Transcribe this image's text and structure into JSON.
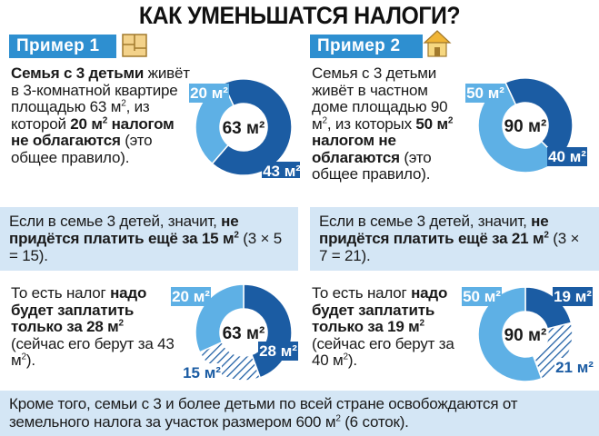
{
  "title": "КАК УМЕНЬШАТСЯ НАЛОГИ?",
  "colors": {
    "dark_blue": "#1b5ca3",
    "light_blue": "#5eb0e5",
    "panel_bg": "#d4e6f5",
    "tag_blue": "#2e8fd0"
  },
  "example1": {
    "label": "Пример 1",
    "icon": "floor-plan-icon",
    "text": [
      {
        "t": "Семья с 3 детьми",
        "b": true
      },
      {
        "t": " живёт в 3-комнатной квартире площадью 63 м"
      },
      {
        "t": "2",
        "sup": true
      },
      {
        "t": ", из которой "
      },
      {
        "t": "20 м",
        "b": true
      },
      {
        "t": "2",
        "sup": true,
        "b": true
      },
      {
        "t": " налогом не облагаются",
        "b": true
      },
      {
        "t": " (это общее правило)."
      }
    ],
    "panel": [
      {
        "t": "Если в семье 3 детей, значит, "
      },
      {
        "t": "не придётся платить ещё за 15 м",
        "b": true
      },
      {
        "t": "2",
        "sup": true,
        "b": true
      },
      {
        "t": " (3 × 5 = 15)."
      }
    ],
    "result": [
      {
        "t": "То есть налог "
      },
      {
        "t": "надо будет заплатить только за 28 м",
        "b": true
      },
      {
        "t": "2",
        "sup": true,
        "b": true
      },
      {
        "t": " (сейчас его берут за 43 м"
      },
      {
        "t": "2",
        "sup": true
      },
      {
        "t": ")."
      }
    ]
  },
  "example2": {
    "label": "Пример 2",
    "icon": "house-icon",
    "text": [
      {
        "t": "Семья с 3 детьми живёт в частном доме площадью 90 м"
      },
      {
        "t": "2",
        "sup": true
      },
      {
        "t": ", из которых "
      },
      {
        "t": "50 м",
        "b": true
      },
      {
        "t": "2",
        "sup": true,
        "b": true
      },
      {
        "t": " налогом не облагаются",
        "b": true
      },
      {
        "t": " (это общее правило)."
      }
    ],
    "panel": [
      {
        "t": "Если в семье 3 детей, значит, "
      },
      {
        "t": "не придётся платить ещё за 21 м",
        "b": true
      },
      {
        "t": "2",
        "sup": true,
        "b": true
      },
      {
        "t": " (3 × 7 = 21)."
      }
    ],
    "result": [
      {
        "t": "То есть налог "
      },
      {
        "t": "надо будет заплатить только за 19 м",
        "b": true
      },
      {
        "t": "2",
        "sup": true,
        "b": true
      },
      {
        "t": " (сейчас его берут за 40 м"
      },
      {
        "t": "2",
        "sup": true
      },
      {
        "t": ")."
      }
    ]
  },
  "footer": [
    {
      "t": "Кроме того, семьи с 3 и более детьми по всей стране освобождаются от земельного налога за участок размером 600 м"
    },
    {
      "t": "2",
      "sup": true
    },
    {
      "t": " (6 соток)."
    }
  ],
  "chart_data": [
    {
      "type": "pie",
      "id": "chart1",
      "center": "63 м²",
      "slices": [
        {
          "label": "43 м²",
          "value": 43,
          "color": "#1b5ca3",
          "style": "solid"
        },
        {
          "label": "20 м²",
          "value": 20,
          "color": "#5eb0e5",
          "style": "solid"
        }
      ]
    },
    {
      "type": "pie",
      "id": "chart2",
      "center": "90 м²",
      "slices": [
        {
          "label": "40 м²",
          "value": 40,
          "color": "#1b5ca3",
          "style": "solid"
        },
        {
          "label": "50 м²",
          "value": 50,
          "color": "#5eb0e5",
          "style": "solid"
        }
      ]
    },
    {
      "type": "pie",
      "id": "chart3",
      "center": "63 м²",
      "slices": [
        {
          "label": "28 м²",
          "value": 28,
          "color": "#1b5ca3",
          "style": "solid"
        },
        {
          "label": "15 м²",
          "value": 15,
          "color": "#1b5ca3",
          "style": "hatched"
        },
        {
          "label": "20 м²",
          "value": 20,
          "color": "#5eb0e5",
          "style": "solid"
        }
      ]
    },
    {
      "type": "pie",
      "id": "chart4",
      "center": "90 м²",
      "slices": [
        {
          "label": "19 м²",
          "value": 19,
          "color": "#1b5ca3",
          "style": "solid"
        },
        {
          "label": "21 м²",
          "value": 21,
          "color": "#1b5ca3",
          "style": "hatched"
        },
        {
          "label": "50 м²",
          "value": 50,
          "color": "#5eb0e5",
          "style": "solid"
        }
      ]
    }
  ]
}
